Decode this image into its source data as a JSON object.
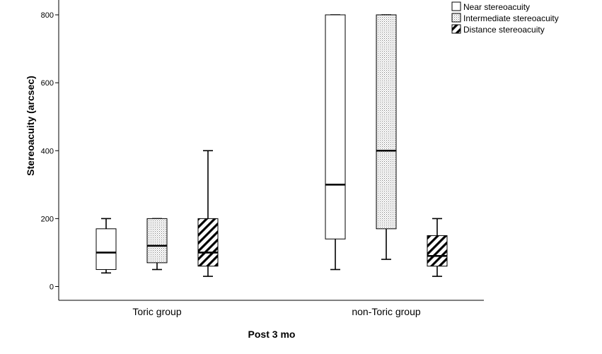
{
  "chart_data": {
    "type": "boxplot",
    "title": "",
    "xlabel": "Post 3 mo",
    "ylabel": "Stereoacuity (arcsec)",
    "ylim": [
      -40,
      830
    ],
    "yticks": [
      0,
      200,
      400,
      600,
      800
    ],
    "categories": [
      "Toric group",
      "non-Toric group"
    ],
    "legend_position": "top-right",
    "grid": false,
    "series": [
      {
        "name": "Near stereoacuity",
        "fill": "plain",
        "boxes": [
          {
            "min": 40,
            "q1": 50,
            "median": 100,
            "q3": 170,
            "max": 200
          },
          {
            "min": 50,
            "q1": 140,
            "median": 300,
            "q3": 800,
            "max": 800
          }
        ]
      },
      {
        "name": "Intermediate stereoacuity",
        "fill": "dots",
        "boxes": [
          {
            "min": 50,
            "q1": 70,
            "median": 120,
            "q3": 200,
            "max": 200
          },
          {
            "min": 80,
            "q1": 170,
            "median": 400,
            "q3": 800,
            "max": 800
          }
        ]
      },
      {
        "name": "Distance stereoacuity",
        "fill": "hatch",
        "boxes": [
          {
            "min": 30,
            "q1": 60,
            "median": 100,
            "q3": 200,
            "max": 400
          },
          {
            "min": 30,
            "q1": 60,
            "median": 90,
            "q3": 150,
            "max": 200
          }
        ]
      }
    ]
  }
}
